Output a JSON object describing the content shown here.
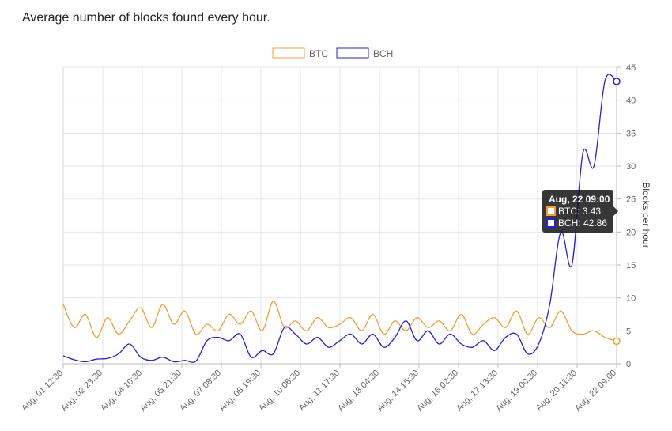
{
  "page": {
    "title": "Average number of blocks found every hour."
  },
  "chart_data": {
    "type": "line",
    "ylabel": "Blocks per hour",
    "ylim": [
      0,
      45
    ],
    "yticks": [
      0,
      5,
      10,
      15,
      20,
      25,
      30,
      35,
      40,
      45
    ],
    "y_axis_position": "right",
    "grid": true,
    "legend_position": "top-center",
    "xlim": [
      "2017-08-01 12:30",
      "2017-08-22 09:00"
    ],
    "x_tick_labels": [
      "Aug, 01 12:30",
      "Aug, 02 23:30",
      "Aug, 04 10:30",
      "Aug, 05 21:30",
      "Aug, 07 08:30",
      "Aug, 08 19:30",
      "Aug, 10 06:30",
      "Aug, 11 17:30",
      "Aug, 13 04:30",
      "Aug, 14 15:30",
      "Aug, 16 02:30",
      "Aug, 17 13:30",
      "Aug, 19 00:30",
      "Aug, 20 11:30",
      "Aug, 22 09:00"
    ],
    "series": [
      {
        "name": "BTC",
        "color": "#f0a030",
        "x": [
          "2017-08-01 12:30",
          "2017-08-01 22:30",
          "2017-08-02 08:30",
          "2017-08-02 18:30",
          "2017-08-03 04:30",
          "2017-08-03 14:30",
          "2017-08-04 00:30",
          "2017-08-04 10:30",
          "2017-08-04 20:30",
          "2017-08-05 06:30",
          "2017-08-05 16:30",
          "2017-08-06 02:30",
          "2017-08-06 12:30",
          "2017-08-06 22:30",
          "2017-08-07 08:30",
          "2017-08-07 18:30",
          "2017-08-08 04:30",
          "2017-08-08 14:30",
          "2017-08-09 00:30",
          "2017-08-09 10:30",
          "2017-08-09 20:30",
          "2017-08-10 06:30",
          "2017-08-10 16:30",
          "2017-08-11 02:30",
          "2017-08-11 12:30",
          "2017-08-11 22:30",
          "2017-08-12 08:30",
          "2017-08-12 18:30",
          "2017-08-13 04:30",
          "2017-08-13 14:30",
          "2017-08-14 00:30",
          "2017-08-14 10:30",
          "2017-08-14 20:30",
          "2017-08-15 06:30",
          "2017-08-15 16:30",
          "2017-08-16 02:30",
          "2017-08-16 12:30",
          "2017-08-16 22:30",
          "2017-08-17 08:30",
          "2017-08-17 18:30",
          "2017-08-18 04:30",
          "2017-08-18 14:30",
          "2017-08-19 00:30",
          "2017-08-19 10:30",
          "2017-08-19 20:30",
          "2017-08-20 06:30",
          "2017-08-20 16:30",
          "2017-08-21 02:30",
          "2017-08-21 12:30",
          "2017-08-21 22:30",
          "2017-08-22 09:00"
        ],
        "values": [
          9.0,
          5.5,
          7.5,
          4.0,
          7.0,
          4.5,
          6.5,
          8.5,
          5.5,
          9.0,
          6.0,
          8.0,
          4.5,
          6.0,
          5.0,
          7.5,
          6.0,
          8.0,
          5.0,
          9.5,
          5.5,
          6.5,
          5.0,
          7.0,
          5.5,
          6.0,
          7.0,
          5.0,
          7.5,
          4.5,
          6.5,
          5.0,
          7.0,
          5.5,
          6.5,
          5.0,
          7.5,
          4.5,
          6.0,
          7.0,
          5.5,
          8.0,
          4.5,
          7.0,
          5.5,
          8.0,
          5.0,
          4.5,
          5.0,
          4.0,
          3.43
        ]
      },
      {
        "name": "BCH",
        "color": "#2222dd",
        "x": [
          "2017-08-01 12:30",
          "2017-08-01 22:30",
          "2017-08-02 08:30",
          "2017-08-02 18:30",
          "2017-08-03 04:30",
          "2017-08-03 14:30",
          "2017-08-04 00:30",
          "2017-08-04 10:30",
          "2017-08-04 20:30",
          "2017-08-05 06:30",
          "2017-08-05 16:30",
          "2017-08-06 02:30",
          "2017-08-06 12:30",
          "2017-08-06 22:30",
          "2017-08-07 08:30",
          "2017-08-07 18:30",
          "2017-08-08 04:30",
          "2017-08-08 14:30",
          "2017-08-09 00:30",
          "2017-08-09 10:30",
          "2017-08-09 20:30",
          "2017-08-10 06:30",
          "2017-08-10 16:30",
          "2017-08-11 02:30",
          "2017-08-11 12:30",
          "2017-08-11 22:30",
          "2017-08-12 08:30",
          "2017-08-12 18:30",
          "2017-08-13 04:30",
          "2017-08-13 14:30",
          "2017-08-14 00:30",
          "2017-08-14 10:30",
          "2017-08-14 20:30",
          "2017-08-15 06:30",
          "2017-08-15 16:30",
          "2017-08-16 02:30",
          "2017-08-16 12:30",
          "2017-08-16 22:30",
          "2017-08-17 08:30",
          "2017-08-17 18:30",
          "2017-08-18 04:30",
          "2017-08-18 14:30",
          "2017-08-19 00:30",
          "2017-08-19 10:30",
          "2017-08-19 20:30",
          "2017-08-20 06:30",
          "2017-08-20 16:30",
          "2017-08-21 02:30",
          "2017-08-21 12:30",
          "2017-08-21 22:30",
          "2017-08-22 09:00"
        ],
        "values": [
          1.2,
          0.6,
          0.3,
          0.7,
          0.8,
          1.5,
          3.0,
          1.0,
          0.5,
          1.0,
          0.3,
          0.5,
          0.4,
          3.5,
          4.0,
          3.5,
          4.5,
          1.0,
          2.0,
          1.5,
          5.5,
          4.5,
          3.0,
          4.0,
          2.5,
          3.5,
          4.5,
          3.0,
          4.5,
          2.5,
          4.0,
          6.5,
          3.5,
          5.0,
          3.0,
          4.5,
          3.0,
          2.5,
          3.5,
          2.0,
          4.0,
          4.5,
          1.5,
          3.0,
          9.0,
          20.0,
          15.0,
          32.0,
          30.0,
          43.0,
          42.86
        ]
      }
    ],
    "tooltip": {
      "title": "Aug, 22 09:00",
      "entries": [
        {
          "label": "BTC: 3.43",
          "color": "#f0a030"
        },
        {
          "label": "BCH: 42.86",
          "color": "#2222dd"
        }
      ]
    }
  }
}
